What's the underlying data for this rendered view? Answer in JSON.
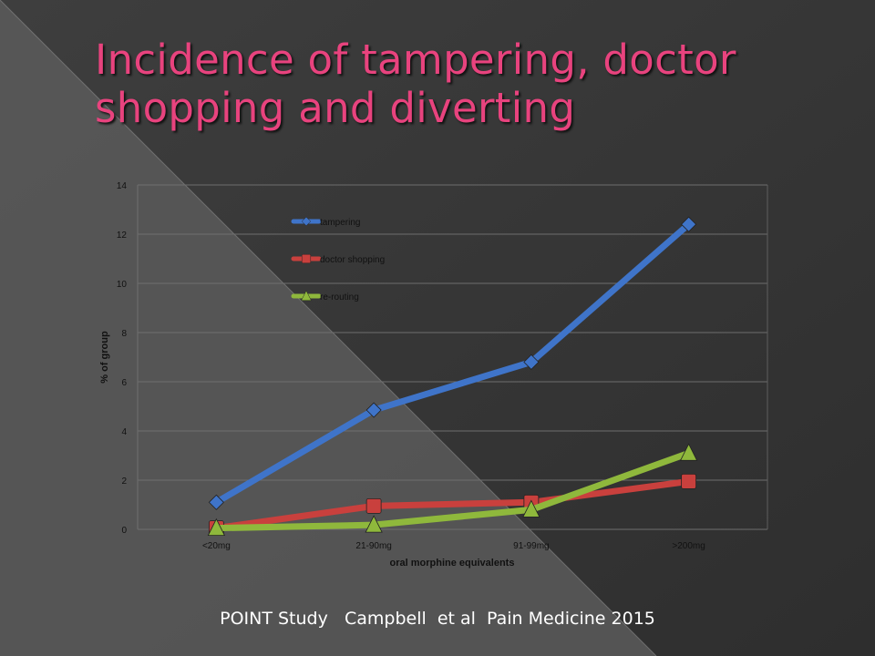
{
  "slide": {
    "title": "Incidence of tampering, doctor shopping and diverting",
    "footer": "POINT Study   Campbell  et al  Pain Medicine 2015",
    "title_color": "#e8437e"
  },
  "chart_data": {
    "type": "line",
    "categories": [
      "<20mg",
      "21-90mg",
      "91-99mg",
      ">200mg"
    ],
    "series": [
      {
        "name": "tampering",
        "values": [
          1.1,
          4.85,
          6.8,
          12.4
        ],
        "color": "#3f74c9",
        "marker": "diamond"
      },
      {
        "name": "doctor shopping",
        "values": [
          0.05,
          0.95,
          1.1,
          1.95
        ],
        "color": "#c9403d",
        "marker": "square"
      },
      {
        "name": "re-routing",
        "values": [
          0.05,
          0.18,
          0.8,
          3.1
        ],
        "color": "#8fb83c",
        "marker": "triangle"
      }
    ],
    "yticks": [
      0,
      2,
      4,
      6,
      8,
      10,
      12,
      14
    ],
    "ylim": [
      0,
      14
    ],
    "xlabel": "oral morphine equivalents",
    "ylabel": "% of group",
    "legend_position": "top-left inside plot",
    "grid": true
  }
}
